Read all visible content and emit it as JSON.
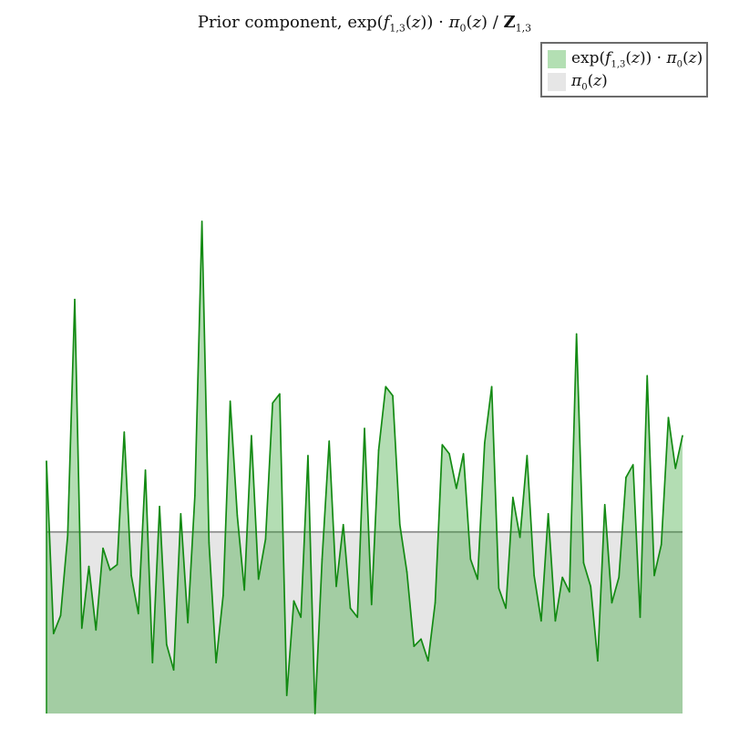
{
  "chart_data": {
    "type": "area",
    "title": "Prior component, exp(f_{1,3}(z)) · π_0(z) / Z_{1,3}",
    "xlabel": "",
    "ylabel": "",
    "grid": false,
    "legend_position": "top-right",
    "ylim": [
      0,
      2.75
    ],
    "prior_value": 1.0,
    "series": [
      {
        "name": "exp(f_{1,3}(z)) · π_0(z)",
        "color": "#2ca02c",
        "fill": "#b3dfb3",
        "values": [
          1.39,
          0.44,
          0.54,
          0.98,
          2.28,
          0.47,
          0.81,
          0.46,
          0.91,
          0.79,
          0.82,
          1.55,
          0.76,
          0.55,
          1.34,
          0.28,
          1.14,
          0.38,
          0.24,
          1.1,
          0.5,
          1.2,
          2.71,
          0.94,
          0.28,
          0.65,
          1.72,
          1.09,
          0.68,
          1.53,
          0.74,
          0.96,
          1.71,
          1.76,
          0.1,
          0.62,
          0.53,
          1.42,
          0.0,
          0.85,
          1.5,
          0.7,
          1.04,
          0.58,
          0.53,
          1.57,
          0.6,
          1.45,
          1.8,
          1.75,
          1.04,
          0.78,
          0.37,
          0.41,
          0.29,
          0.61,
          1.48,
          1.43,
          1.24,
          1.43,
          0.85,
          0.74,
          1.49,
          1.8,
          0.69,
          0.58,
          1.19,
          0.97,
          1.42,
          0.76,
          0.51,
          1.1,
          0.51,
          0.75,
          0.67,
          2.09,
          0.83,
          0.7,
          0.29,
          1.15,
          0.61,
          0.75,
          1.3,
          1.37,
          0.53,
          1.86,
          0.76,
          0.93,
          1.63,
          1.35,
          1.53
        ]
      },
      {
        "name": "π_0(z)",
        "color": "#8c8c8c",
        "fill": "#e6e6e6",
        "values": []
      }
    ]
  },
  "legend": {
    "item_1_label": "exp(f1,3(z)) · π0(z)",
    "item_2_label": "π0(z)"
  }
}
